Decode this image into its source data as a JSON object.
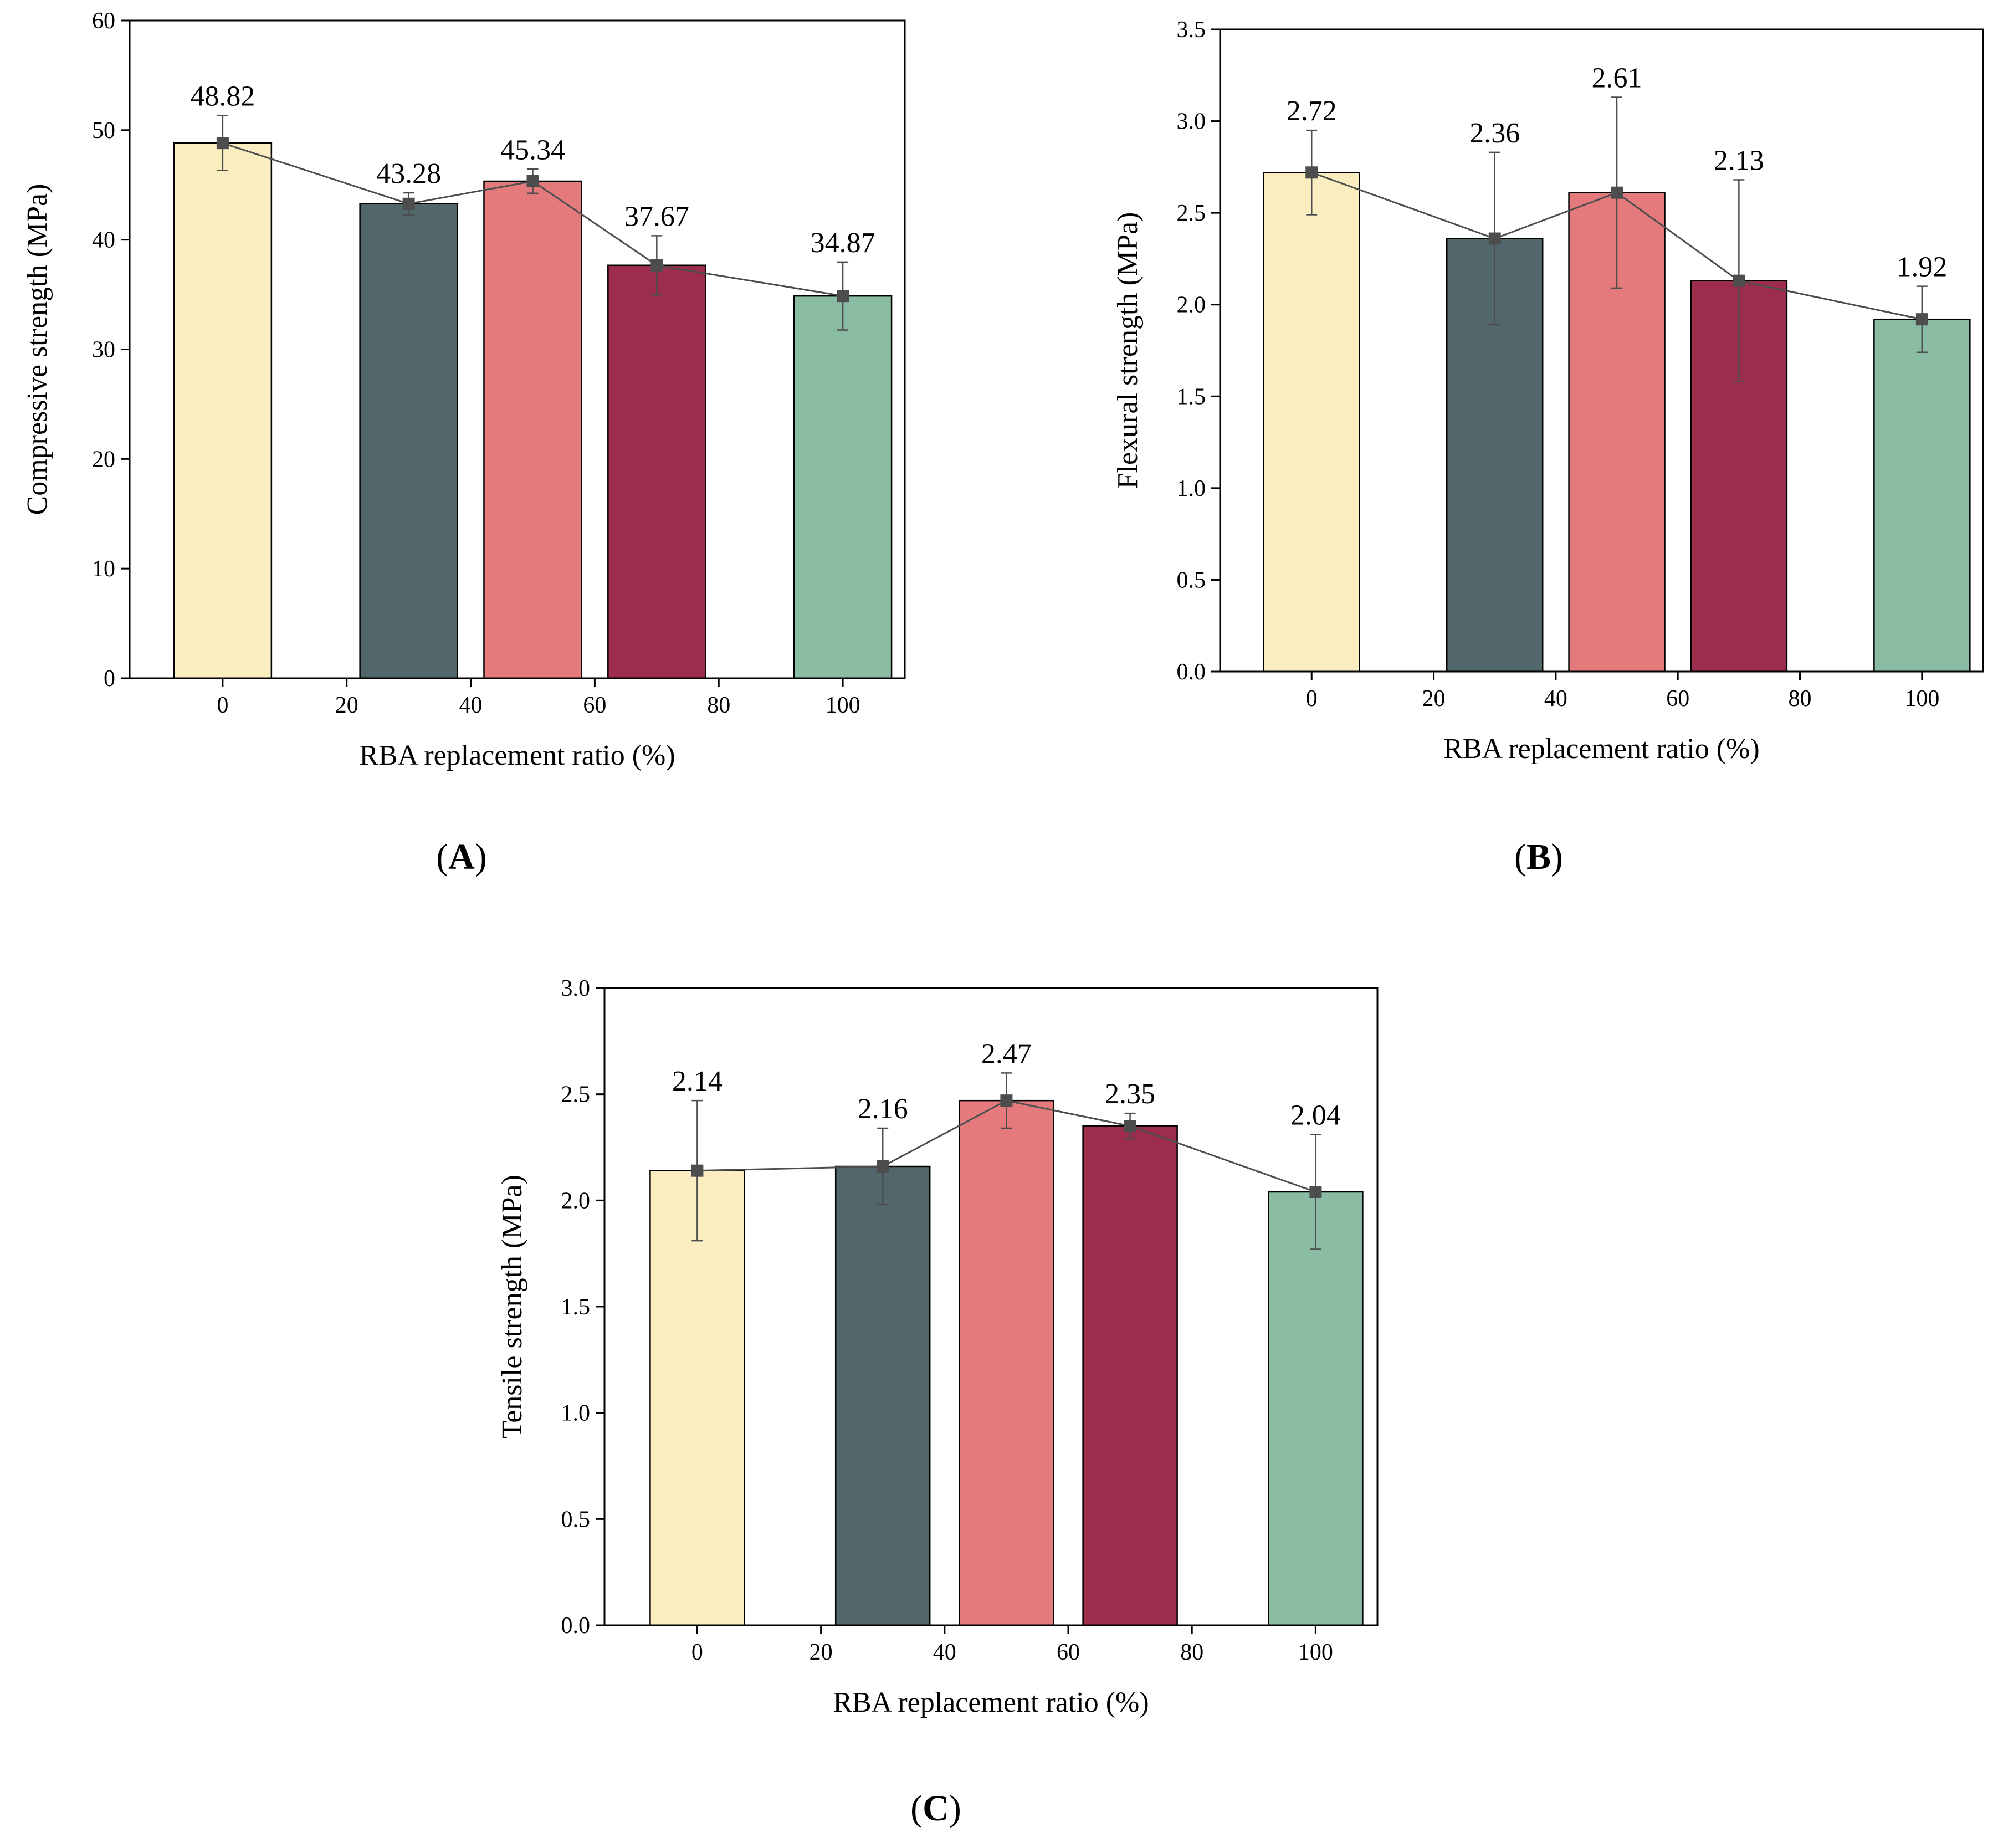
{
  "figure": {
    "bar_colors": [
      "#faeec1",
      "#52676c",
      "#e57a7c",
      "#9c2d4d",
      "#89bca2"
    ],
    "line_color": "#4d4d4d"
  },
  "chart_data": [
    {
      "type": "bar",
      "panel": "(A)",
      "panel_prefix": "(",
      "panel_letter": "A",
      "panel_suffix": ")",
      "xlabel": "RBA replacement ratio (%)",
      "ylabel": "Compressive strength (MPa)",
      "x": [
        0,
        30,
        50,
        70,
        100
      ],
      "values": [
        48.82,
        43.28,
        45.34,
        37.67,
        34.87
      ],
      "value_labels": [
        "48.82",
        "43.28",
        "45.34",
        "37.67",
        "34.87"
      ],
      "errors": [
        2.5,
        1.0,
        1.1,
        2.7,
        3.1
      ],
      "xlim": [
        -15,
        110
      ],
      "ylim": [
        0,
        60
      ],
      "xticks": [
        0,
        20,
        40,
        60,
        80,
        100
      ],
      "xtick_labels": [
        "0",
        "20",
        "40",
        "60",
        "80",
        "100"
      ],
      "yticks": [
        0,
        10,
        20,
        30,
        40,
        50,
        60
      ],
      "ytick_labels": [
        "0",
        "10",
        "20",
        "30",
        "40",
        "50",
        "60"
      ]
    },
    {
      "type": "bar",
      "panel": "(B)",
      "panel_prefix": "(",
      "panel_letter": "B",
      "panel_suffix": ")",
      "xlabel": "RBA replacement ratio (%)",
      "ylabel": "Flexural strength (MPa)",
      "x": [
        0,
        30,
        50,
        70,
        100
      ],
      "values": [
        2.72,
        2.36,
        2.61,
        2.13,
        1.92
      ],
      "value_labels": [
        "2.72",
        "2.36",
        "2.61",
        "2.13",
        "1.92"
      ],
      "errors": [
        0.23,
        0.47,
        0.52,
        0.55,
        0.18
      ],
      "xlim": [
        -15,
        110
      ],
      "ylim": [
        0,
        3.5
      ],
      "xticks": [
        0,
        20,
        40,
        60,
        80,
        100
      ],
      "xtick_labels": [
        "0",
        "20",
        "40",
        "60",
        "80",
        "100"
      ],
      "yticks": [
        0,
        0.5,
        1.0,
        1.5,
        2.0,
        2.5,
        3.0,
        3.5
      ],
      "ytick_labels": [
        "0.0",
        "0.5",
        "1.0",
        "1.5",
        "2.0",
        "2.5",
        "3.0",
        "3.5"
      ]
    },
    {
      "type": "bar",
      "panel": "(C)",
      "panel_prefix": "(",
      "panel_letter": "C",
      "panel_suffix": ")",
      "xlabel": "RBA replacement ratio (%)",
      "ylabel": "Tensile strength (MPa)",
      "x": [
        0,
        30,
        50,
        70,
        100
      ],
      "values": [
        2.14,
        2.16,
        2.47,
        2.35,
        2.04
      ],
      "value_labels": [
        "2.14",
        "2.16",
        "2.47",
        "2.35",
        "2.04"
      ],
      "errors": [
        0.33,
        0.18,
        0.13,
        0.06,
        0.27
      ],
      "xlim": [
        -15,
        110
      ],
      "ylim": [
        0,
        3.0
      ],
      "xticks": [
        0,
        20,
        40,
        60,
        80,
        100
      ],
      "xtick_labels": [
        "0",
        "20",
        "40",
        "60",
        "80",
        "100"
      ],
      "yticks": [
        0,
        0.5,
        1.0,
        1.5,
        2.0,
        2.5,
        3.0
      ],
      "ytick_labels": [
        "0.0",
        "0.5",
        "1.0",
        "1.5",
        "2.0",
        "2.5",
        "3.0"
      ]
    }
  ]
}
